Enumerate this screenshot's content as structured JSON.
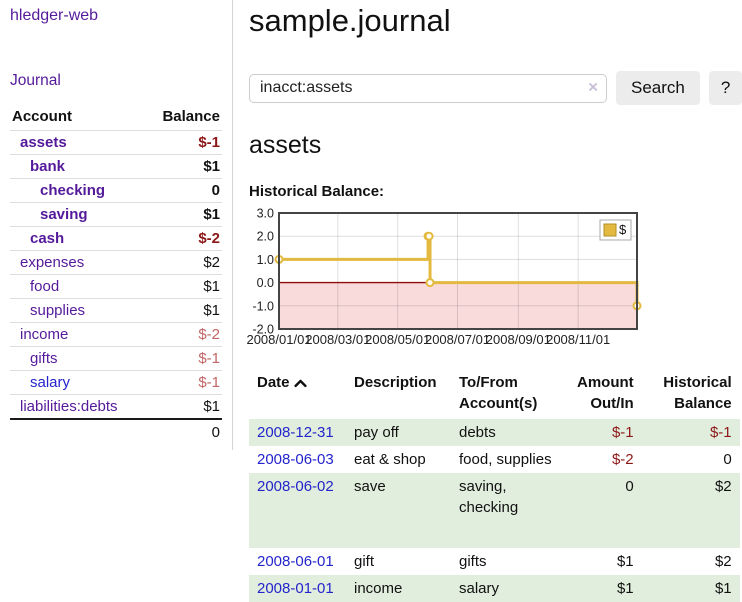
{
  "theme": {
    "purple": "#551a9b",
    "blue": "#2424cc",
    "darkred": "#8c1717",
    "softred": "#c26565",
    "green": "#e1eedd",
    "gold": "#e3ba3f",
    "pink": "#f9dbdb",
    "zeroline": "#8f0e0e",
    "btnbg": "#ececec"
  },
  "app": {
    "title": "hledger-web"
  },
  "sidebar": {
    "journal_label": "Journal",
    "account_header": "Account",
    "balance_header": "Balance",
    "accounts": [
      {
        "name": "assets",
        "balance": "$-1",
        "level": 0,
        "bold": true,
        "neg": "strong"
      },
      {
        "name": "bank",
        "balance": "$1",
        "level": 1,
        "bold": true
      },
      {
        "name": "checking",
        "balance": "0",
        "level": 2,
        "bold": true
      },
      {
        "name": "saving",
        "balance": "$1",
        "level": 2,
        "bold": true
      },
      {
        "name": "cash",
        "balance": "$-2",
        "level": 1,
        "bold": true,
        "neg": "strong"
      },
      {
        "name": "expenses",
        "balance": "$2",
        "level": 0
      },
      {
        "name": "food",
        "balance": "$1",
        "level": 1
      },
      {
        "name": "supplies",
        "balance": "$1",
        "level": 1
      },
      {
        "name": "income",
        "balance": "$-2",
        "level": 0,
        "neg": "soft"
      },
      {
        "name": "gifts",
        "balance": "$-1",
        "level": 1,
        "neg": "soft"
      },
      {
        "name": "salary",
        "balance": "$-1",
        "level": 1,
        "neg": "soft",
        "link": "blue"
      },
      {
        "name": "liabilities:debts",
        "balance": "$1",
        "level": 0
      }
    ],
    "total": "0"
  },
  "main": {
    "title": "sample.journal",
    "search": {
      "value": "inacct:assets",
      "clear_icon": "×",
      "button": "Search",
      "help_button": "?"
    },
    "account_heading": "assets",
    "chart_heading": "Historical Balance:"
  },
  "chart_data": {
    "type": "line",
    "subtype": "step",
    "title": "Historical Balance",
    "legend": "$",
    "legend_position": "top-right",
    "grid": true,
    "ylim": [
      -2.0,
      3.0
    ],
    "y_ticks": [
      3.0,
      2.0,
      1.0,
      0.0,
      -1.0,
      -2.0
    ],
    "x_domain": [
      "2008-01-01",
      "2008-12-31"
    ],
    "x_tick_dates": [
      "2008-01-01",
      "2008-03-01",
      "2008-05-01",
      "2008-07-01",
      "2008-09-01",
      "2008-11-01"
    ],
    "x_tick_labels": [
      "2008/01/01",
      "2008/03/01",
      "2008/05/01",
      "2008/07/01",
      "2008/09/01",
      "2008/11/01"
    ],
    "negative_fill": "#f9dbdb",
    "zero_line_color": "#8f0e0e",
    "series": [
      {
        "name": "$",
        "color": "#e3ba3f",
        "points": [
          [
            "2008-01-01",
            1
          ],
          [
            "2008-06-01",
            2
          ],
          [
            "2008-06-02",
            2
          ],
          [
            "2008-06-03",
            0
          ],
          [
            "2008-12-31",
            -1
          ]
        ]
      }
    ]
  },
  "register": {
    "headers": {
      "date": "Date",
      "sort_indicator": "ascending",
      "description": "Description",
      "tofrom": "To/From Account(s)",
      "amount": "Amount Out/In",
      "balance": "Historical Balance"
    },
    "rows": [
      {
        "date": "2008-12-31",
        "description": "pay off",
        "accounts": "debts",
        "amount": "$-1",
        "balance": "$-1",
        "amount_neg": true,
        "balance_neg": true
      },
      {
        "date": "2008-06-03",
        "description": "eat & shop",
        "accounts": "food, supplies",
        "amount": "$-2",
        "balance": "0",
        "amount_neg": true
      },
      {
        "date": "2008-06-02",
        "description": "save",
        "accounts": "saving, checking",
        "amount": "0",
        "balance": "$2"
      },
      {
        "date": "2008-06-01",
        "description": "gift",
        "accounts": "gifts",
        "amount": "$1",
        "balance": "$2"
      },
      {
        "date": "2008-01-01",
        "description": "income",
        "accounts": "salary",
        "amount": "$1",
        "balance": "$1"
      }
    ]
  }
}
